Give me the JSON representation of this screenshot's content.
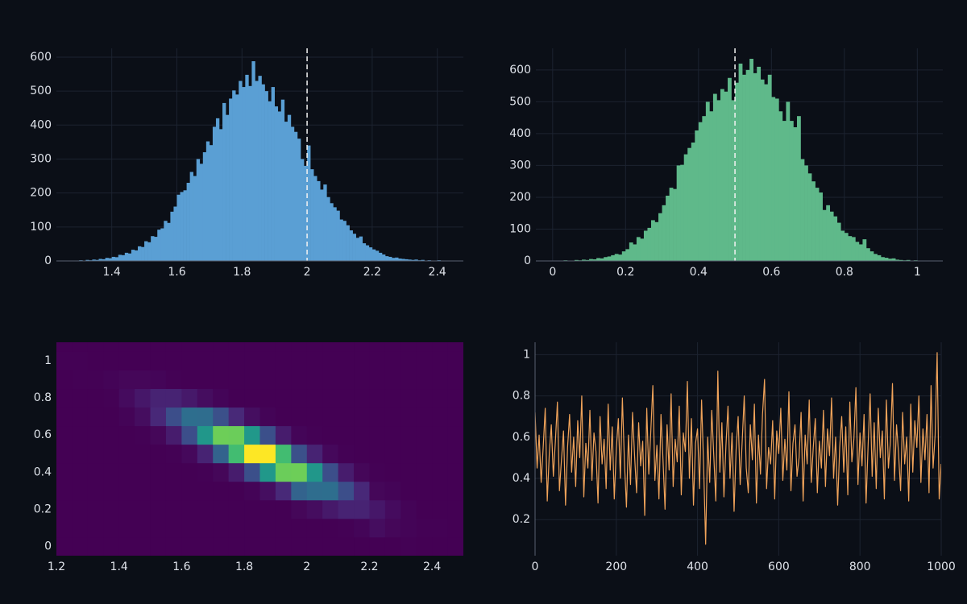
{
  "chart_data": [
    {
      "type": "histogram",
      "color": "#5a9fd4",
      "grid": true,
      "xlim": [
        1.23,
        2.48
      ],
      "ylim": [
        0,
        626
      ],
      "xticks": [
        1.4,
        1.6,
        1.8,
        2,
        2.2,
        2.4
      ],
      "yticks": [
        0,
        100,
        200,
        300,
        400,
        500,
        600
      ],
      "vline": 2,
      "bins": [
        1.27,
        1.28,
        1.29,
        1.3,
        1.31,
        1.32,
        1.33,
        1.34,
        1.35,
        1.36,
        1.37,
        1.38,
        1.39,
        1.4,
        1.41,
        1.42,
        1.43,
        1.44,
        1.45,
        1.46,
        1.47,
        1.48,
        1.49,
        1.5,
        1.51,
        1.52,
        1.53,
        1.54,
        1.55,
        1.56,
        1.57,
        1.58,
        1.59,
        1.6,
        1.61,
        1.62,
        1.63,
        1.64,
        1.65,
        1.66,
        1.67,
        1.68,
        1.69,
        1.7,
        1.71,
        1.72,
        1.73,
        1.74,
        1.75,
        1.76,
        1.77,
        1.78,
        1.79,
        1.8,
        1.81,
        1.82,
        1.83,
        1.84,
        1.85,
        1.86,
        1.87,
        1.88,
        1.89,
        1.9,
        1.91,
        1.92,
        1.93,
        1.94,
        1.95,
        1.96,
        1.97,
        1.98,
        1.99,
        2,
        2.01,
        2.02,
        2.03,
        2.04,
        2.05,
        2.06,
        2.07,
        2.08,
        2.09,
        2.1,
        2.11,
        2.12,
        2.13,
        2.14,
        2.15,
        2.16,
        2.17,
        2.18,
        2.19,
        2.2,
        2.21,
        2.22,
        2.23,
        2.24,
        2.25,
        2.26,
        2.27,
        2.28,
        2.29,
        2.3,
        2.31,
        2.32,
        2.33,
        2.34,
        2.35,
        2.36,
        2.37,
        2.38,
        2.39,
        2.4,
        2.41,
        2.42,
        2.43,
        2.44,
        2.45,
        2.46,
        2.47
      ],
      "values": [
        1,
        0,
        1,
        2,
        0,
        3,
        2,
        4,
        3,
        6,
        5,
        9,
        8,
        12,
        11,
        18,
        17,
        24,
        22,
        33,
        31,
        43,
        41,
        58,
        55,
        73,
        71,
        92,
        96,
        118,
        112,
        145,
        160,
        195,
        203,
        208,
        230,
        262,
        250,
        300,
        286,
        320,
        352,
        341,
        395,
        420,
        388,
        465,
        430,
        478,
        502,
        490,
        530,
        512,
        548,
        515,
        588,
        530,
        545,
        520,
        500,
        470,
        512,
        455,
        440,
        475,
        410,
        430,
        395,
        380,
        360,
        300,
        280,
        340,
        270,
        250,
        235,
        210,
        225,
        188,
        170,
        158,
        148,
        122,
        118,
        105,
        90,
        80,
        68,
        72,
        52,
        46,
        40,
        34,
        30,
        24,
        19,
        14,
        12,
        9,
        10,
        7,
        6,
        5,
        4,
        3,
        4,
        2,
        3,
        1,
        2,
        1,
        0,
        2,
        1,
        0,
        1,
        0,
        1,
        0
      ]
    },
    {
      "type": "histogram",
      "color": "#5fb98a",
      "grid": true,
      "xlim": [
        -0.046,
        1.07
      ],
      "ylim": [
        0,
        668
      ],
      "xticks": [
        0,
        0.2,
        0.4,
        0.6,
        0.8,
        1
      ],
      "yticks": [
        0,
        100,
        200,
        300,
        400,
        500,
        600
      ],
      "vline": 0.5,
      "bins": [
        0,
        0.01,
        0.02,
        0.03,
        0.04,
        0.05,
        0.06,
        0.07,
        0.08,
        0.09,
        0.1,
        0.11,
        0.12,
        0.13,
        0.14,
        0.15,
        0.16,
        0.17,
        0.18,
        0.19,
        0.2,
        0.21,
        0.22,
        0.23,
        0.24,
        0.25,
        0.26,
        0.27,
        0.28,
        0.29,
        0.3,
        0.31,
        0.32,
        0.33,
        0.34,
        0.35,
        0.36,
        0.37,
        0.38,
        0.39,
        0.4,
        0.41,
        0.42,
        0.43,
        0.44,
        0.45,
        0.46,
        0.47,
        0.48,
        0.49,
        0.5,
        0.51,
        0.52,
        0.53,
        0.54,
        0.55,
        0.56,
        0.57,
        0.58,
        0.59,
        0.6,
        0.61,
        0.62,
        0.63,
        0.64,
        0.65,
        0.66,
        0.67,
        0.68,
        0.69,
        0.7,
        0.71,
        0.72,
        0.73,
        0.74,
        0.75,
        0.76,
        0.77,
        0.78,
        0.79,
        0.8,
        0.81,
        0.82,
        0.83,
        0.84,
        0.85,
        0.86,
        0.87,
        0.88,
        0.89,
        0.9,
        0.91,
        0.92,
        0.93,
        0.94,
        0.95,
        0.96,
        0.97,
        0.98,
        0.99,
        1,
        1.01,
        1.02,
        1.03,
        1.04,
        1.05,
        1.06
      ],
      "values": [
        0,
        1,
        0,
        2,
        1,
        0,
        3,
        2,
        4,
        3,
        6,
        5,
        9,
        8,
        12,
        14,
        18,
        22,
        20,
        30,
        37,
        58,
        52,
        75,
        70,
        95,
        104,
        128,
        122,
        150,
        175,
        205,
        230,
        226,
        300,
        302,
        335,
        355,
        372,
        410,
        436,
        455,
        500,
        470,
        525,
        505,
        540,
        532,
        575,
        505,
        560,
        620,
        585,
        600,
        635,
        590,
        610,
        570,
        555,
        585,
        515,
        510,
        470,
        440,
        500,
        440,
        420,
        455,
        320,
        300,
        275,
        250,
        230,
        215,
        160,
        175,
        155,
        140,
        120,
        95,
        88,
        78,
        75,
        60,
        52,
        68,
        40,
        30,
        22,
        18,
        12,
        10,
        7,
        8,
        4,
        3,
        2,
        3,
        1,
        2,
        1,
        0,
        1,
        0,
        1,
        0
      ]
    },
    {
      "type": "heatmap",
      "colorscale": "viridis",
      "xlim": [
        1.2,
        2.5
      ],
      "ylim": [
        -0.05,
        1.1
      ],
      "xticks": [
        1.2,
        1.4,
        1.6,
        1.8,
        2,
        2.2,
        2.4
      ],
      "yticks": [
        0,
        0.2,
        0.4,
        0.6,
        0.8,
        1
      ],
      "x_bins": [
        1.2,
        1.25,
        1.3,
        1.35,
        1.4,
        1.45,
        1.5,
        1.55,
        1.6,
        1.65,
        1.7,
        1.75,
        1.8,
        1.85,
        1.9,
        1.95,
        2,
        2.05,
        2.1,
        2.15,
        2.2,
        2.25,
        2.3,
        2.35,
        2.4,
        2.45,
        2.5
      ],
      "y_bins": [
        -0.05,
        0.05,
        0.15,
        0.25,
        0.35,
        0.45,
        0.55,
        0.65,
        0.75,
        0.85,
        0.95,
        1.05,
        1.15
      ],
      "z": [
        [
          0,
          0,
          0,
          0,
          0,
          0,
          0,
          0,
          0,
          0,
          0,
          0,
          0,
          0,
          0,
          0,
          0,
          0,
          0,
          0,
          0,
          0,
          1,
          0,
          0,
          0
        ],
        [
          0,
          0,
          0,
          0,
          0,
          0,
          0,
          0,
          0,
          0,
          0,
          0,
          0,
          0,
          0,
          0,
          0,
          0,
          1,
          3,
          8,
          4,
          2,
          1,
          1,
          0
        ],
        [
          0,
          0,
          0,
          0,
          0,
          0,
          0,
          0,
          0,
          0,
          0,
          0,
          0,
          0,
          0,
          4,
          8,
          16,
          23,
          23,
          15,
          7,
          2,
          0,
          0,
          0
        ],
        [
          0,
          0,
          0,
          0,
          0,
          0,
          0,
          0,
          0,
          0,
          0,
          0,
          2,
          9,
          27,
          75,
          84,
          85,
          57,
          26,
          4,
          2,
          0,
          0,
          0,
          0
        ],
        [
          0,
          0,
          0,
          0,
          0,
          0,
          0,
          0,
          0,
          1,
          4,
          18,
          58,
          126,
          183,
          184,
          125,
          57,
          18,
          4,
          1,
          0,
          0,
          0,
          0,
          0
        ],
        [
          0,
          0,
          0,
          0,
          0,
          0,
          0,
          1,
          5,
          23,
          75,
          164,
          237,
          237,
          164,
          59,
          23,
          5,
          1,
          0,
          0,
          0,
          0,
          0,
          0,
          0
        ],
        [
          0,
          0,
          0,
          0,
          0,
          1,
          4,
          18,
          57,
          125,
          184,
          183,
          126,
          58,
          18,
          3,
          1,
          0,
          0,
          0,
          0,
          0,
          0,
          0,
          0,
          0
        ],
        [
          0,
          0,
          0,
          0,
          2,
          8,
          26,
          57,
          85,
          84,
          59,
          27,
          9,
          2,
          0,
          0,
          0,
          0,
          0,
          0,
          0,
          0,
          0,
          0,
          0,
          0
        ],
        [
          0,
          0,
          0,
          1,
          7,
          15,
          23,
          23,
          16,
          8,
          3,
          0,
          0,
          0,
          0,
          0,
          0,
          0,
          0,
          0,
          0,
          0,
          0,
          0,
          0,
          0
        ],
        [
          0,
          1,
          1,
          2,
          4,
          4,
          3,
          1,
          0,
          0,
          0,
          0,
          0,
          0,
          0,
          0,
          0,
          0,
          0,
          0,
          0,
          0,
          0,
          0,
          0,
          0
        ],
        [
          1,
          1,
          0,
          0,
          0,
          0,
          0,
          0,
          0,
          0,
          0,
          0,
          0,
          0,
          0,
          0,
          0,
          0,
          0,
          0,
          0,
          0,
          0,
          0,
          0,
          0
        ],
        [
          0,
          0,
          0,
          0,
          0,
          0,
          0,
          0,
          0,
          0,
          0,
          0,
          0,
          0,
          0,
          0,
          0,
          0,
          0,
          0,
          0,
          0,
          0,
          0,
          0,
          0
        ]
      ]
    },
    {
      "type": "line",
      "color": "#f0a35a",
      "grid": true,
      "xlim": [
        0,
        1000
      ],
      "ylim": [
        0.025,
        1.06
      ],
      "xticks": [
        0,
        200,
        400,
        600,
        800,
        1000
      ],
      "yticks": [
        0.2,
        0.4,
        0.6,
        0.8,
        1
      ],
      "x": [
        0,
        5,
        10,
        15,
        20,
        25,
        30,
        35,
        40,
        45,
        50,
        55,
        60,
        65,
        70,
        75,
        80,
        85,
        90,
        95,
        100,
        105,
        110,
        115,
        120,
        125,
        130,
        135,
        140,
        145,
        150,
        155,
        160,
        165,
        170,
        175,
        180,
        185,
        190,
        195,
        200,
        205,
        210,
        215,
        220,
        225,
        230,
        235,
        240,
        245,
        250,
        255,
        260,
        265,
        270,
        275,
        280,
        285,
        290,
        295,
        300,
        305,
        310,
        315,
        320,
        325,
        330,
        335,
        340,
        345,
        350,
        355,
        360,
        365,
        370,
        375,
        380,
        385,
        390,
        395,
        400,
        405,
        410,
        415,
        420,
        425,
        430,
        435,
        440,
        445,
        450,
        455,
        460,
        465,
        470,
        475,
        480,
        485,
        490,
        495,
        500,
        505,
        510,
        515,
        520,
        525,
        530,
        535,
        540,
        545,
        550,
        555,
        560,
        565,
        570,
        575,
        580,
        585,
        590,
        595,
        600,
        605,
        610,
        615,
        620,
        625,
        630,
        635,
        640,
        645,
        650,
        655,
        660,
        665,
        670,
        675,
        680,
        685,
        690,
        695,
        700,
        705,
        710,
        715,
        720,
        725,
        730,
        735,
        740,
        745,
        750,
        755,
        760,
        765,
        770,
        775,
        780,
        785,
        790,
        795,
        800,
        805,
        810,
        815,
        820,
        825,
        830,
        835,
        840,
        845,
        850,
        855,
        860,
        865,
        870,
        875,
        880,
        885,
        890,
        895,
        900,
        905,
        910,
        915,
        920,
        925,
        930,
        935,
        940,
        945,
        950,
        955,
        960,
        965,
        970,
        975,
        980,
        985,
        990,
        995,
        1000
      ],
      "values": [
        0.72,
        0.45,
        0.61,
        0.38,
        0.55,
        0.74,
        0.29,
        0.52,
        0.66,
        0.41,
        0.58,
        0.77,
        0.34,
        0.49,
        0.63,
        0.27,
        0.55,
        0.71,
        0.43,
        0.6,
        0.36,
        0.68,
        0.5,
        0.8,
        0.31,
        0.57,
        0.45,
        0.73,
        0.39,
        0.62,
        0.53,
        0.28,
        0.7,
        0.47,
        0.59,
        0.35,
        0.76,
        0.44,
        0.65,
        0.3,
        0.54,
        0.69,
        0.4,
        0.79,
        0.48,
        0.26,
        0.61,
        0.37,
        0.72,
        0.51,
        0.33,
        0.67,
        0.46,
        0.58,
        0.22,
        0.74,
        0.42,
        0.63,
        0.85,
        0.39,
        0.56,
        0.3,
        0.71,
        0.49,
        0.25,
        0.66,
        0.44,
        0.81,
        0.36,
        0.59,
        0.48,
        0.75,
        0.32,
        0.62,
        0.53,
        0.87,
        0.4,
        0.69,
        0.27,
        0.57,
        0.64,
        0.35,
        0.78,
        0.46,
        0.08,
        0.6,
        0.38,
        0.73,
        0.51,
        0.29,
        0.92,
        0.43,
        0.67,
        0.31,
        0.56,
        0.75,
        0.4,
        0.62,
        0.24,
        0.54,
        0.7,
        0.37,
        0.58,
        0.8,
        0.45,
        0.33,
        0.66,
        0.49,
        0.76,
        0.28,
        0.61,
        0.42,
        0.71,
        0.88,
        0.35,
        0.55,
        0.47,
        0.68,
        0.3,
        0.63,
        0.52,
        0.74,
        0.39,
        0.59,
        0.44,
        0.82,
        0.34,
        0.57,
        0.66,
        0.41,
        0.5,
        0.72,
        0.29,
        0.61,
        0.47,
        0.78,
        0.38,
        0.55,
        0.69,
        0.33,
        0.58,
        0.45,
        0.73,
        0.36,
        0.64,
        0.51,
        0.79,
        0.4,
        0.6,
        0.27,
        0.55,
        0.7,
        0.43,
        0.65,
        0.32,
        0.77,
        0.48,
        0.59,
        0.84,
        0.37,
        0.62,
        0.46,
        0.71,
        0.28,
        0.56,
        0.81,
        0.41,
        0.67,
        0.35,
        0.74,
        0.5,
        0.63,
        0.3,
        0.78,
        0.45,
        0.58,
        0.86,
        0.39,
        0.66,
        0.52,
        0.34,
        0.72,
        0.47,
        0.6,
        0.29,
        0.76,
        0.43,
        0.68,
        0.55,
        0.8,
        0.38,
        0.64,
        0.49,
        0.71,
        0.33,
        0.85,
        0.45,
        0.61,
        1.01,
        0.3,
        0.47
      ]
    }
  ]
}
